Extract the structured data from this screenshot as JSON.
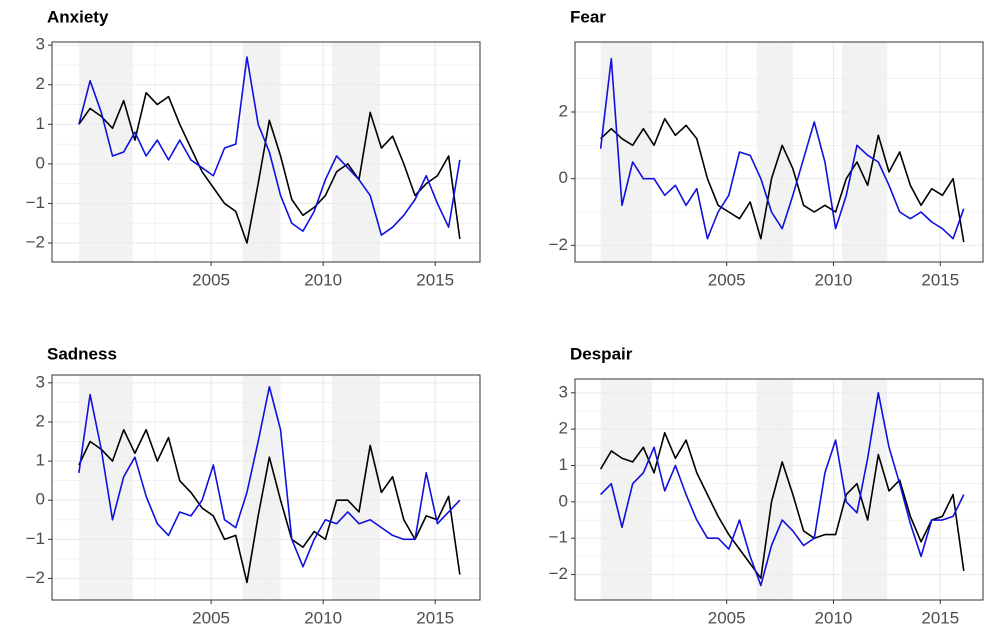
{
  "chart_data": [
    {
      "type": "line",
      "title": "Anxiety",
      "x": [
        1999.1,
        1999.6,
        2000.1,
        2000.6,
        2001.1,
        2001.6,
        2002.1,
        2002.6,
        2003.1,
        2003.6,
        2004.1,
        2004.6,
        2005.1,
        2005.6,
        2006.1,
        2006.6,
        2007.1,
        2007.6,
        2008.1,
        2008.6,
        2009.1,
        2009.6,
        2010.1,
        2010.6,
        2011.1,
        2011.6,
        2012.1,
        2012.6,
        2013.1,
        2013.6,
        2014.1,
        2014.6,
        2015.1,
        2015.6,
        2016.1
      ],
      "series": [
        {
          "color": "#000000",
          "values": [
            1.0,
            1.4,
            1.2,
            0.9,
            1.6,
            0.6,
            1.8,
            1.5,
            1.7,
            1.0,
            0.4,
            -0.2,
            -0.6,
            -1.0,
            -1.2,
            -2.0,
            -0.5,
            1.1,
            0.2,
            -0.9,
            -1.3,
            -1.1,
            -0.8,
            -0.2,
            0.0,
            -0.4,
            1.3,
            0.4,
            0.7,
            0.0,
            -0.8,
            -0.5,
            -0.3,
            0.2,
            -1.9
          ]
        },
        {
          "color": "#1010e0",
          "values": [
            1.0,
            2.1,
            1.3,
            0.2,
            0.3,
            0.8,
            0.2,
            0.6,
            0.1,
            0.6,
            0.1,
            -0.1,
            -0.3,
            0.4,
            0.5,
            2.7,
            1.0,
            0.3,
            -0.8,
            -1.5,
            -1.7,
            -1.2,
            -0.4,
            0.2,
            -0.1,
            -0.4,
            -0.8,
            -1.8,
            -1.6,
            -1.3,
            -0.9,
            -0.3,
            -1.0,
            -1.6,
            0.1
          ]
        }
      ],
      "xlim": [
        1997.9,
        2017.0
      ],
      "xticks": [
        2005,
        2010,
        2015
      ],
      "x_minor_ticks": [
        2002.5,
        2007.5,
        2012.5
      ],
      "ylim": [
        -2.48,
        3.08
      ],
      "yticks": [
        {
          "value": -2,
          "label": "−2"
        },
        {
          "value": -1,
          "label": "−1"
        },
        0,
        1,
        2,
        3
      ],
      "y_minor_ticks": [
        -1.5,
        -0.5,
        0.5,
        1.5,
        2.5
      ],
      "shaded_ranges": [
        [
          1999.1,
          2001.5
        ],
        [
          2006.4,
          2008.1
        ],
        [
          2010.4,
          2012.5
        ]
      ],
      "grid": true
    },
    {
      "type": "line",
      "title": "Fear",
      "x": [
        1999.1,
        1999.6,
        2000.1,
        2000.6,
        2001.1,
        2001.6,
        2002.1,
        2002.6,
        2003.1,
        2003.6,
        2004.1,
        2004.6,
        2005.1,
        2005.6,
        2006.1,
        2006.6,
        2007.1,
        2007.6,
        2008.1,
        2008.6,
        2009.1,
        2009.6,
        2010.1,
        2010.6,
        2011.1,
        2011.6,
        2012.1,
        2012.6,
        2013.1,
        2013.6,
        2014.1,
        2014.6,
        2015.1,
        2015.6,
        2016.1
      ],
      "series": [
        {
          "color": "#000000",
          "values": [
            1.2,
            1.5,
            1.2,
            1.0,
            1.5,
            1.0,
            1.8,
            1.3,
            1.6,
            1.2,
            0.0,
            -0.8,
            -1.0,
            -1.2,
            -0.7,
            -1.8,
            0.0,
            1.0,
            0.3,
            -0.8,
            -1.0,
            -0.8,
            -1.0,
            0.0,
            0.5,
            -0.2,
            1.3,
            0.2,
            0.8,
            -0.2,
            -0.8,
            -0.3,
            -0.5,
            0.0,
            -1.9
          ]
        },
        {
          "color": "#1010e0",
          "values": [
            0.9,
            3.6,
            -0.8,
            0.5,
            0.0,
            0.0,
            -0.5,
            -0.2,
            -0.8,
            -0.3,
            -1.8,
            -1.0,
            -0.5,
            0.8,
            0.7,
            0.0,
            -1.0,
            -1.5,
            -0.5,
            0.6,
            1.7,
            0.5,
            -1.5,
            -0.5,
            1.0,
            0.7,
            0.5,
            -0.2,
            -1.0,
            -1.2,
            -1.0,
            -1.3,
            -1.5,
            -1.8,
            -0.9
          ]
        }
      ],
      "xlim": [
        1997.9,
        2017.0
      ],
      "xticks": [
        2005,
        2010,
        2015
      ],
      "x_minor_ticks": [
        2002.5,
        2007.5,
        2012.5
      ],
      "ylim": [
        -2.5,
        4.1
      ],
      "yticks": [
        {
          "value": -2,
          "label": "−2"
        },
        0,
        2
      ],
      "y_minor_ticks": [
        -1,
        1,
        3
      ],
      "shaded_ranges": [
        [
          1999.1,
          2001.5
        ],
        [
          2006.4,
          2008.1
        ],
        [
          2010.4,
          2012.5
        ]
      ],
      "grid": true
    },
    {
      "type": "line",
      "title": "Sadness",
      "x": [
        1999.1,
        1999.6,
        2000.1,
        2000.6,
        2001.1,
        2001.6,
        2002.1,
        2002.6,
        2003.1,
        2003.6,
        2004.1,
        2004.6,
        2005.1,
        2005.6,
        2006.1,
        2006.6,
        2007.1,
        2007.6,
        2008.1,
        2008.6,
        2009.1,
        2009.6,
        2010.1,
        2010.6,
        2011.1,
        2011.6,
        2012.1,
        2012.6,
        2013.1,
        2013.6,
        2014.1,
        2014.6,
        2015.1,
        2015.6,
        2016.1
      ],
      "series": [
        {
          "color": "#000000",
          "values": [
            0.9,
            1.5,
            1.3,
            1.0,
            1.8,
            1.2,
            1.8,
            1.0,
            1.6,
            0.5,
            0.2,
            -0.2,
            -0.4,
            -1.0,
            -0.9,
            -2.1,
            -0.4,
            1.1,
            0.0,
            -1.0,
            -1.2,
            -0.8,
            -1.0,
            0.0,
            0.0,
            -0.3,
            1.4,
            0.2,
            0.6,
            -0.5,
            -1.0,
            -0.4,
            -0.5,
            0.1,
            -1.9
          ]
        },
        {
          "color": "#1010e0",
          "values": [
            0.7,
            2.7,
            1.3,
            -0.5,
            0.6,
            1.1,
            0.1,
            -0.6,
            -0.9,
            -0.3,
            -0.4,
            0.0,
            0.9,
            -0.5,
            -0.7,
            0.2,
            1.5,
            2.9,
            1.8,
            -1.0,
            -1.7,
            -1.0,
            -0.5,
            -0.6,
            -0.3,
            -0.6,
            -0.5,
            -0.7,
            -0.9,
            -1.0,
            -1.0,
            0.7,
            -0.6,
            -0.3,
            0.0
          ]
        }
      ],
      "xlim": [
        1997.9,
        2017.0
      ],
      "xticks": [
        2005,
        2010,
        2015
      ],
      "x_minor_ticks": [
        2002.5,
        2007.5,
        2012.5
      ],
      "ylim": [
        -2.55,
        3.2
      ],
      "yticks": [
        {
          "value": -2,
          "label": "−2"
        },
        {
          "value": -1,
          "label": "−1"
        },
        0,
        1,
        2,
        3
      ],
      "y_minor_ticks": [
        -1.5,
        -0.5,
        0.5,
        1.5,
        2.5
      ],
      "shaded_ranges": [
        [
          1999.1,
          2001.5
        ],
        [
          2006.4,
          2008.1
        ],
        [
          2010.4,
          2012.5
        ]
      ],
      "grid": true
    },
    {
      "type": "line",
      "title": "Despair",
      "x": [
        1999.1,
        1999.6,
        2000.1,
        2000.6,
        2001.1,
        2001.6,
        2002.1,
        2002.6,
        2003.1,
        2003.6,
        2004.1,
        2004.6,
        2005.1,
        2005.6,
        2006.1,
        2006.6,
        2007.1,
        2007.6,
        2008.1,
        2008.6,
        2009.1,
        2009.6,
        2010.1,
        2010.6,
        2011.1,
        2011.6,
        2012.1,
        2012.6,
        2013.1,
        2013.6,
        2014.1,
        2014.6,
        2015.1,
        2015.6,
        2016.1
      ],
      "series": [
        {
          "color": "#000000",
          "values": [
            0.9,
            1.4,
            1.2,
            1.1,
            1.5,
            0.8,
            1.9,
            1.2,
            1.7,
            0.8,
            0.2,
            -0.4,
            -0.9,
            -1.3,
            -1.7,
            -2.1,
            0.0,
            1.1,
            0.2,
            -0.8,
            -1.0,
            -0.9,
            -0.9,
            0.2,
            0.5,
            -0.5,
            1.3,
            0.3,
            0.6,
            -0.4,
            -1.1,
            -0.5,
            -0.4,
            0.2,
            -1.9
          ]
        },
        {
          "color": "#1010e0",
          "values": [
            0.2,
            0.5,
            -0.7,
            0.5,
            0.8,
            1.5,
            0.3,
            1.0,
            0.2,
            -0.5,
            -1.0,
            -1.0,
            -1.3,
            -0.5,
            -1.5,
            -2.3,
            -1.2,
            -0.5,
            -0.8,
            -1.2,
            -1.0,
            0.8,
            1.7,
            0.0,
            -0.3,
            1.2,
            3.0,
            1.5,
            0.5,
            -0.6,
            -1.5,
            -0.5,
            -0.5,
            -0.4,
            0.2
          ]
        }
      ],
      "xlim": [
        1997.9,
        2017.0
      ],
      "xticks": [
        2005,
        2010,
        2015
      ],
      "x_minor_ticks": [
        2002.5,
        2007.5,
        2012.5
      ],
      "ylim": [
        -2.7,
        3.38
      ],
      "yticks": [
        {
          "value": -2,
          "label": "−2"
        },
        {
          "value": -1,
          "label": "−1"
        },
        0,
        1,
        2,
        3
      ],
      "y_minor_ticks": [
        -1.5,
        -0.5,
        0.5,
        1.5,
        2.5
      ],
      "shaded_ranges": [
        [
          1999.1,
          2001.5
        ],
        [
          2006.4,
          2008.1
        ],
        [
          2010.4,
          2012.5
        ]
      ],
      "grid": true
    }
  ]
}
